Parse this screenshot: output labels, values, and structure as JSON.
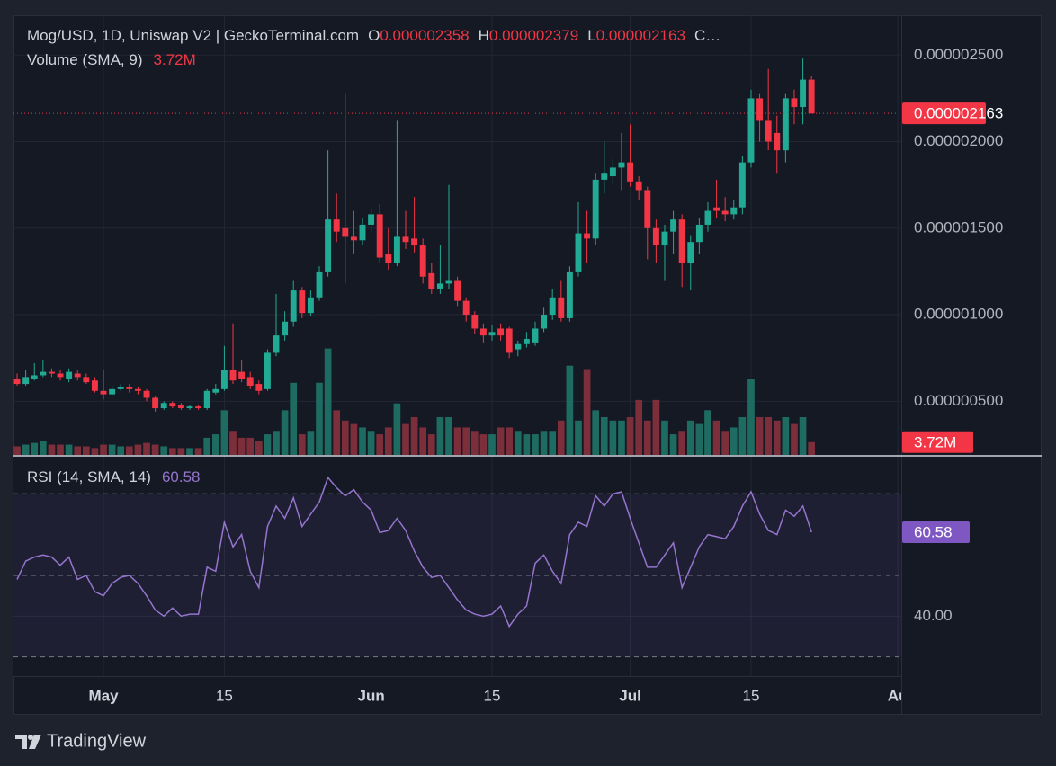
{
  "chart_data": {
    "type": "candlestick",
    "title": "Mog/USD, 1D, Uniswap V2 | GeckoTerminal.com",
    "ohlc_legend": [
      {
        "name": "O",
        "label": "0.000002358"
      },
      {
        "name": "H",
        "label": "0.000002379"
      },
      {
        "name": "L",
        "label": "0.000002163"
      }
    ],
    "ohlc_legend_truncated": "C…",
    "up_color": "#22ab94",
    "down_color": "#f23645",
    "candles": [
      [
        6.3e-07,
        6.6e-07,
        5.9e-07,
        6e-07
      ],
      [
        6e-07,
        6.8e-07,
        5.9e-07,
        6.4e-07
      ],
      [
        6.3e-07,
        7.2e-07,
        6.2e-07,
        6.5e-07
      ],
      [
        6.5e-07,
        7.4e-07,
        6.4e-07,
        6.7e-07
      ],
      [
        6.7e-07,
        6.9e-07,
        6.4e-07,
        6.6e-07
      ],
      [
        6.6e-07,
        6.8e-07,
        6.2e-07,
        6.4e-07
      ],
      [
        6.3e-07,
        6.9e-07,
        6.1e-07,
        6.7e-07
      ],
      [
        6.6e-07,
        6.8e-07,
        6.2e-07,
        6.4e-07
      ],
      [
        6.4e-07,
        6.6e-07,
        6e-07,
        6.1e-07
      ],
      [
        6.2e-07,
        6.4e-07,
        5.5e-07,
        5.6e-07
      ],
      [
        5.6e-07,
        6.8e-07,
        5.1e-07,
        5.4e-07
      ],
      [
        5.4e-07,
        5.9e-07,
        5.3e-07,
        5.7e-07
      ],
      [
        5.7e-07,
        6e-07,
        5.6e-07,
        5.8e-07
      ],
      [
        5.8e-07,
        6e-07,
        5.5e-07,
        5.7e-07
      ],
      [
        5.7e-07,
        5.8e-07,
        5.4e-07,
        5.6e-07
      ],
      [
        5.6e-07,
        5.7e-07,
        5e-07,
        5.2e-07
      ],
      [
        5.2e-07,
        5.3e-07,
        4.4e-07,
        4.6e-07
      ],
      [
        4.6e-07,
        5e-07,
        4.5e-07,
        4.9e-07
      ],
      [
        4.9e-07,
        5e-07,
        4.6e-07,
        4.7e-07
      ],
      [
        4.8e-07,
        4.9e-07,
        4.5e-07,
        4.6e-07
      ],
      [
        4.6e-07,
        4.8e-07,
        4.5e-07,
        4.7e-07
      ],
      [
        4.7e-07,
        4.8e-07,
        4.5e-07,
        4.6e-07
      ],
      [
        4.6e-07,
        5.7e-07,
        4.5e-07,
        5.6e-07
      ],
      [
        5.5e-07,
        6e-07,
        5.4e-07,
        5.7e-07
      ],
      [
        5.7e-07,
        8.2e-07,
        5.6e-07,
        6.8e-07
      ],
      [
        6.8e-07,
        9.5e-07,
        6e-07,
        6.2e-07
      ],
      [
        6.7e-07,
        7.4e-07,
        6.1e-07,
        6.3e-07
      ],
      [
        6.4e-07,
        6.7e-07,
        5.7e-07,
        5.9e-07
      ],
      [
        6e-07,
        6.2e-07,
        5.4e-07,
        5.6e-07
      ],
      [
        5.7e-07,
        8e-07,
        5.6e-07,
        7.8e-07
      ],
      [
        7.8e-07,
        1.12e-06,
        7.6e-07,
        8.8e-07
      ],
      [
        8.8e-07,
        1.02e-06,
        8.5e-07,
        9.6e-07
      ],
      [
        9.6e-07,
        1.2e-06,
        9.3e-07,
        1.14e-06
      ],
      [
        1.14e-06,
        1.16e-06,
        9.8e-07,
        1.01e-06
      ],
      [
        1.01e-06,
        1.14e-06,
        9.9e-07,
        1.1e-06
      ],
      [
        1.1e-06,
        1.28e-06,
        1.08e-06,
        1.25e-06
      ],
      [
        1.25e-06,
        1.95e-06,
        1.22e-06,
        1.55e-06
      ],
      [
        1.55e-06,
        1.7e-06,
        1.42e-06,
        1.48e-06
      ],
      [
        1.5e-06,
        2.28e-06,
        1.18e-06,
        1.45e-06
      ],
      [
        1.45e-06,
        1.6e-06,
        1.35e-06,
        1.43e-06
      ],
      [
        1.43e-06,
        1.56e-06,
        1.4e-06,
        1.52e-06
      ],
      [
        1.52e-06,
        1.62e-06,
        1.48e-06,
        1.58e-06
      ],
      [
        1.58e-06,
        1.64e-06,
        1.3e-06,
        1.33e-06
      ],
      [
        1.35e-06,
        1.5e-06,
        1.26e-06,
        1.3e-06
      ],
      [
        1.3e-06,
        2.12e-06,
        1.28e-06,
        1.45e-06
      ],
      [
        1.45e-06,
        1.6e-06,
        1.38e-06,
        1.42e-06
      ],
      [
        1.44e-06,
        1.68e-06,
        1.36e-06,
        1.4e-06
      ],
      [
        1.4e-06,
        1.44e-06,
        1.18e-06,
        1.22e-06
      ],
      [
        1.24e-06,
        1.3e-06,
        1.12e-06,
        1.15e-06
      ],
      [
        1.15e-06,
        1.4e-06,
        1.12e-06,
        1.18e-06
      ],
      [
        1.18e-06,
        1.75e-06,
        1.15e-06,
        1.2e-06
      ],
      [
        1.2e-06,
        1.22e-06,
        1.05e-06,
        1.08e-06
      ],
      [
        1.08e-06,
        1.1e-06,
        9.6e-07,
        1e-06
      ],
      [
        1e-06,
        1.02e-06,
        8.9e-07,
        9.2e-07
      ],
      [
        9.2e-07,
        9.5e-07,
        8.4e-07,
        8.8e-07
      ],
      [
        8.8e-07,
        9.4e-07,
        8.5e-07,
        9e-07
      ],
      [
        9.2e-07,
        9.5e-07,
        8.5e-07,
        8.8e-07
      ],
      [
        9.2e-07,
        9.3e-07,
        7.5e-07,
        7.8e-07
      ],
      [
        8e-07,
        8.5e-07,
        7.6e-07,
        8.3e-07
      ],
      [
        8.3e-07,
        9e-07,
        8.1e-07,
        8.6e-07
      ],
      [
        8.4e-07,
        9.6e-07,
        8.2e-07,
        9.2e-07
      ],
      [
        9.2e-07,
        1.04e-06,
        9e-07,
        1e-06
      ],
      [
        1e-06,
        1.15e-06,
        9.7e-07,
        1.1e-06
      ],
      [
        1.1e-06,
        1.2e-06,
        9.6e-07,
        9.8e-07
      ],
      [
        9.8e-07,
        1.28e-06,
        9.6e-07,
        1.25e-06
      ],
      [
        1.25e-06,
        1.65e-06,
        1.22e-06,
        1.47e-06
      ],
      [
        1.47e-06,
        1.6e-06,
        1.3e-06,
        1.44e-06
      ],
      [
        1.44e-06,
        1.82e-06,
        1.4e-06,
        1.78e-06
      ],
      [
        1.78e-06,
        2e-06,
        1.7e-06,
        1.82e-06
      ],
      [
        1.8e-06,
        1.9e-06,
        1.75e-06,
        1.85e-06
      ],
      [
        1.85e-06,
        2.05e-06,
        1.72e-06,
        1.88e-06
      ],
      [
        1.88e-06,
        2.1e-06,
        1.74e-06,
        1.77e-06
      ],
      [
        1.77e-06,
        1.8e-06,
        1.66e-06,
        1.72e-06
      ],
      [
        1.72e-06,
        1.74e-06,
        1.32e-06,
        1.5e-06
      ],
      [
        1.5e-06,
        1.55e-06,
        1.3e-06,
        1.4e-06
      ],
      [
        1.4e-06,
        1.52e-06,
        1.2e-06,
        1.48e-06
      ],
      [
        1.48e-06,
        1.6e-06,
        1.35e-06,
        1.55e-06
      ],
      [
        1.55e-06,
        1.58e-06,
        1.16e-06,
        1.3e-06
      ],
      [
        1.3e-06,
        1.46e-06,
        1.14e-06,
        1.42e-06
      ],
      [
        1.42e-06,
        1.56e-06,
        1.35e-06,
        1.52e-06
      ],
      [
        1.52e-06,
        1.65e-06,
        1.48e-06,
        1.6e-06
      ],
      [
        1.62e-06,
        1.78e-06,
        1.56e-06,
        1.6e-06
      ],
      [
        1.6e-06,
        1.68e-06,
        1.54e-06,
        1.58e-06
      ],
      [
        1.58e-06,
        1.66e-06,
        1.55e-06,
        1.62e-06
      ],
      [
        1.62e-06,
        1.92e-06,
        1.58e-06,
        1.88e-06
      ],
      [
        1.88e-06,
        2.3e-06,
        1.85e-06,
        2.25e-06
      ],
      [
        2.25e-06,
        2.28e-06,
        2e-06,
        2.12e-06
      ],
      [
        2.12e-06,
        2.42e-06,
        1.95e-06,
        2e-06
      ],
      [
        2.05e-06,
        2.15e-06,
        1.82e-06,
        1.95e-06
      ],
      [
        1.95e-06,
        2.28e-06,
        1.88e-06,
        2.25e-06
      ],
      [
        2.25e-06,
        2.3e-06,
        2.1e-06,
        2.2e-06
      ],
      [
        2.2e-06,
        2.48e-06,
        2.1e-06,
        2.358e-06
      ],
      [
        2.358e-06,
        2.379e-06,
        2.163e-06,
        2.163e-06
      ]
    ],
    "last_price_label": "0.000002163",
    "ylim": [
      1.9e-07,
      2.73e-06
    ],
    "yticks": [
      {
        "value": 5e-07,
        "label": "0.000000500"
      },
      {
        "value": 1e-06,
        "label": "0.000001000"
      },
      {
        "value": 1.5e-06,
        "label": "0.000001500"
      },
      {
        "value": 2e-06,
        "label": "0.000002000"
      },
      {
        "value": 2.5e-06,
        "label": "0.000002500"
      }
    ],
    "xlim": [
      -0.42,
      102.4
    ],
    "xticks": [
      {
        "value": 10,
        "label": "May"
      },
      {
        "value": 24,
        "label": "15"
      },
      {
        "value": 41,
        "label": "Jun"
      },
      {
        "value": 55,
        "label": "15"
      },
      {
        "value": 71,
        "label": "Jul"
      },
      {
        "value": 85,
        "label": "15"
      },
      {
        "value": 102,
        "label": "Au"
      }
    ],
    "grid": true,
    "volume": {
      "name": "Volume (SMA, 9)",
      "up_color": "#1d6b61",
      "down_color": "#7c2f3a",
      "label_color": "#f23645",
      "ylim": [
        0,
        128000000.0
      ],
      "values": [
        2500000.0,
        3000000.0,
        3500000.0,
        4000000.0,
        3000000.0,
        3000000.0,
        3000000.0,
        2500000.0,
        2500000.0,
        2000000.0,
        3000000.0,
        3000000.0,
        2500000.0,
        2500000.0,
        3000000.0,
        3500000.0,
        3000000.0,
        2500000.0,
        2000000.0,
        2000000.0,
        2000000.0,
        2000000.0,
        5000000.0,
        6000000.0,
        13000000.0,
        7000000.0,
        5000000.0,
        5000000.0,
        4000000.0,
        6000000.0,
        7000000.0,
        13000000.0,
        21000000.0,
        6000000.0,
        7000000.0,
        21000000.0,
        31000000.0,
        13000000.0,
        10000000.0,
        9000000.0,
        8000000.0,
        7000000.0,
        6000000.0,
        8000000.0,
        15000000.0,
        9000000.0,
        11000000.0,
        8000000.0,
        6000000.0,
        11000000.0,
        11000000.0,
        8000000.0,
        8000000.0,
        7000000.0,
        6000000.0,
        6000000.0,
        8000000.0,
        8000000.0,
        7000000.0,
        6000000.0,
        6000000.0,
        7000000.0,
        7000000.0,
        10000000.0,
        26000000.0,
        10000000.0,
        25000000.0,
        13000000.0,
        11000000.0,
        10000000.0,
        10000000.0,
        11000000.0,
        16000000.0,
        10000000.0,
        16000000.0,
        10000000.0,
        6000000.0,
        7000000.0,
        10000000.0,
        9000000.0,
        13000000.0,
        10000000.0,
        7000000.0,
        8000000.0,
        11000000.0,
        22000000.0,
        11000000.0,
        11000000.0,
        10000000.0,
        11000000.0,
        9000000.0,
        11000000.0,
        3720000.0
      ],
      "last_label": "3.72M"
    },
    "rsi": {
      "name": "RSI (14, SMA, 14)",
      "color": "#9575cd",
      "band_color": "#7e57c2",
      "bands": [
        30,
        50,
        70
      ],
      "ylim": [
        25.3,
        79.1
      ],
      "yticks": [
        {
          "value": 40,
          "label": "40.00"
        }
      ],
      "values": [
        49,
        53.5,
        54.5,
        55,
        54.5,
        52.5,
        54.5,
        49,
        50,
        46,
        45,
        48,
        49.5,
        50,
        48,
        45,
        41.5,
        40,
        42,
        40,
        40.5,
        40.5,
        52,
        51,
        63,
        57,
        60,
        51,
        47,
        62,
        67,
        64,
        69,
        62,
        65,
        68,
        74,
        71.5,
        69.5,
        71,
        68,
        66,
        60.5,
        61,
        64,
        61,
        56,
        52,
        49.5,
        50,
        47,
        44,
        41.5,
        40.5,
        40,
        40.5,
        42.5,
        37.5,
        40.5,
        42.5,
        53,
        55,
        51,
        48,
        60,
        63,
        62,
        69.5,
        67,
        70,
        70.5,
        64,
        58,
        52,
        52,
        55,
        58,
        47,
        52,
        57,
        60,
        59.5,
        59,
        62,
        67,
        70.5,
        65,
        61,
        60,
        66,
        64.5,
        67,
        60.58
      ]
    },
    "brand": "TradingView"
  }
}
